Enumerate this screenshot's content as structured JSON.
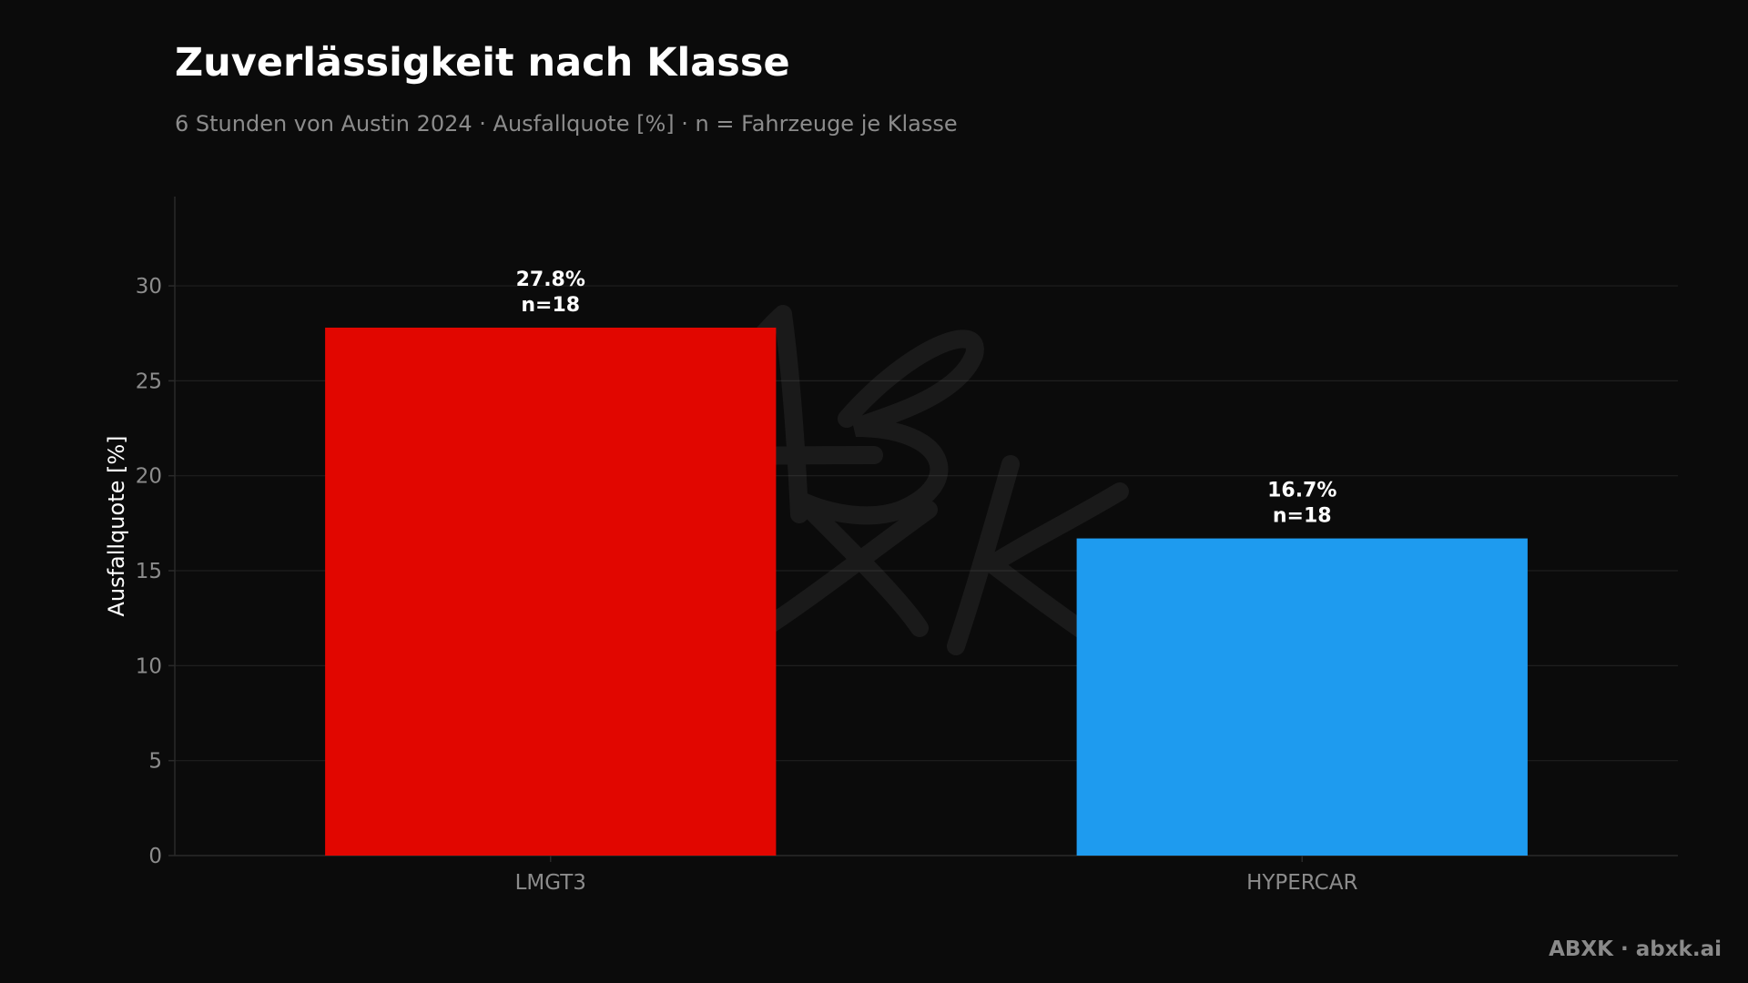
{
  "colors": {
    "background": "#0b0b0b",
    "LMGT3": "#e10600",
    "HYPERCAR": "#1e9bef",
    "grid": "#1f1f1f",
    "axis": "#2a2a2a",
    "tick_text": "#8c8c8c",
    "title": "#ffffff",
    "subtitle": "#8c8c8c"
  },
  "watermark": {
    "text": "ABXK"
  },
  "footer": {
    "brand": "ABXK · abxk.ai"
  },
  "chart_data": {
    "type": "bar",
    "title": "Zuverlässigkeit nach Klasse",
    "subtitle": "6 Stunden von Austin 2024 · Ausfallquote [%] · n = Fahrzeuge je Klasse",
    "xlabel": "",
    "ylabel": "Ausfallquote [%]",
    "categories": [
      "LMGT3",
      "HYPERCAR"
    ],
    "values": [
      27.8,
      16.7
    ],
    "value_labels": [
      "27.8%",
      "16.7%"
    ],
    "n_labels": [
      "n=18",
      "n=18"
    ],
    "ylim": [
      0,
      34.7
    ],
    "yticks": [
      0,
      5,
      10,
      15,
      20,
      25,
      30
    ],
    "grid": true,
    "legend": "none"
  }
}
